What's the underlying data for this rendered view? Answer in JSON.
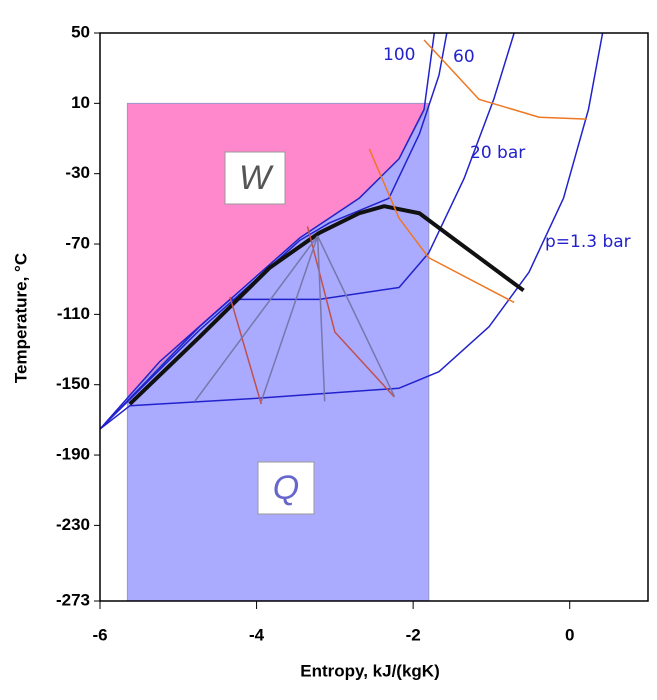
{
  "chart_data": {
    "type": "line",
    "xlabel": "Entropy, kJ/(kgK)",
    "ylabel": "Temperature, °C",
    "xlim": [
      -6,
      1
    ],
    "ylim": [
      -273,
      50
    ],
    "xticks": [
      -6,
      -4,
      -2,
      0
    ],
    "yticks": [
      -273,
      -230,
      -190,
      -150,
      -110,
      -70,
      -30,
      10,
      50
    ],
    "regions": [
      {
        "name": "W",
        "color": "#ff88cc",
        "x": [
          -5.65,
          -5.65,
          -1.8,
          -1.8,
          -2.18,
          -2.69,
          -3.45,
          -4.73
        ],
        "y": [
          -157,
          10,
          10,
          10,
          -21.5,
          -44,
          -66.6,
          -117
        ]
      },
      {
        "name": "Q",
        "color": "#aaaaff",
        "x": [
          -5.65,
          -5.65,
          -4.73,
          -3.45,
          -2.69,
          -2.18,
          -1.8,
          -1.8
        ],
        "y": [
          -273,
          -157,
          -117,
          -66.6,
          -44,
          -21.5,
          10,
          -273
        ]
      }
    ],
    "series": [
      {
        "name": "100",
        "color": "#2222cc",
        "x": [
          -6,
          -4.73,
          -3.45,
          -2.69,
          -2.18,
          -1.86,
          -1.73
        ],
        "y": [
          -175.2,
          -117,
          -66.6,
          -44,
          -21.5,
          6.6,
          50
        ]
      },
      {
        "name": "60",
        "color": "#2222cc",
        "x": [
          -6,
          -4.73,
          -3.45,
          -3.07,
          -2.31,
          -1.92,
          -1.67,
          -1.57
        ],
        "y": [
          -175.2,
          -119,
          -68,
          -58,
          -44,
          -7.4,
          26,
          50
        ]
      },
      {
        "name": "20 bar",
        "color": "#2222cc",
        "x": [
          -6,
          -5.24,
          -4.34,
          -3.2,
          -2.18,
          -1.8,
          -1.35,
          -0.97,
          -0.71
        ],
        "y": [
          -175.2,
          -137,
          -101.5,
          -101.5,
          -94.7,
          -75,
          -32.8,
          12.3,
          50
        ]
      },
      {
        "name": "p=1.3 bar",
        "color": "#2222cc",
        "x": [
          -6,
          -5.62,
          -4.09,
          -2.18,
          -1.67,
          -1.03,
          -0.52,
          -0.08,
          0.24,
          0.42
        ],
        "y": [
          -175.2,
          -162,
          -158,
          -152,
          -142.6,
          -117,
          -86,
          -44,
          6.6,
          50
        ]
      },
      {
        "color": "#111111",
        "x": [
          -5.62,
          -4.73,
          -3.83,
          -3.2,
          -2.69,
          -2.37,
          -1.92,
          -1.41,
          -0.59
        ],
        "y": [
          -161,
          -122.9,
          -83.4,
          -63.7,
          -52.5,
          -48.5,
          -52.5,
          -69.4,
          -96.4
        ]
      },
      {
        "color": "#ee7722",
        "x": [
          -1.86,
          -1.16,
          -0.39,
          0.22
        ],
        "y": [
          46,
          12.3,
          2.1,
          1
        ]
      },
      {
        "color": "#ee7722",
        "x": [
          -2.56,
          -2.18,
          -1.8,
          -0.71
        ],
        "y": [
          -15.9,
          -55.3,
          -77.8,
          -103.2
        ]
      },
      {
        "color": "#c0504d",
        "x": [
          -4.34,
          -3.94
        ],
        "y": [
          -100,
          -161
        ]
      },
      {
        "color": "#c0504d",
        "x": [
          -3.35,
          -3.0,
          -2.24
        ],
        "y": [
          -60,
          -120,
          -157
        ]
      },
      {
        "color": "#7777aa",
        "x": [
          -3.22,
          -4.79
        ],
        "y": [
          -65.4,
          -159.5
        ]
      },
      {
        "color": "#7777aa",
        "x": [
          -3.22,
          -3.94
        ],
        "y": [
          -65.4,
          -159.5
        ]
      },
      {
        "color": "#7777aa",
        "x": [
          -3.22,
          -3.13
        ],
        "y": [
          -65.4,
          -159.5
        ]
      },
      {
        "color": "#7777aa",
        "x": [
          -3.22,
          -2.24
        ],
        "y": [
          -65.4,
          -156.6
        ]
      }
    ]
  }
}
